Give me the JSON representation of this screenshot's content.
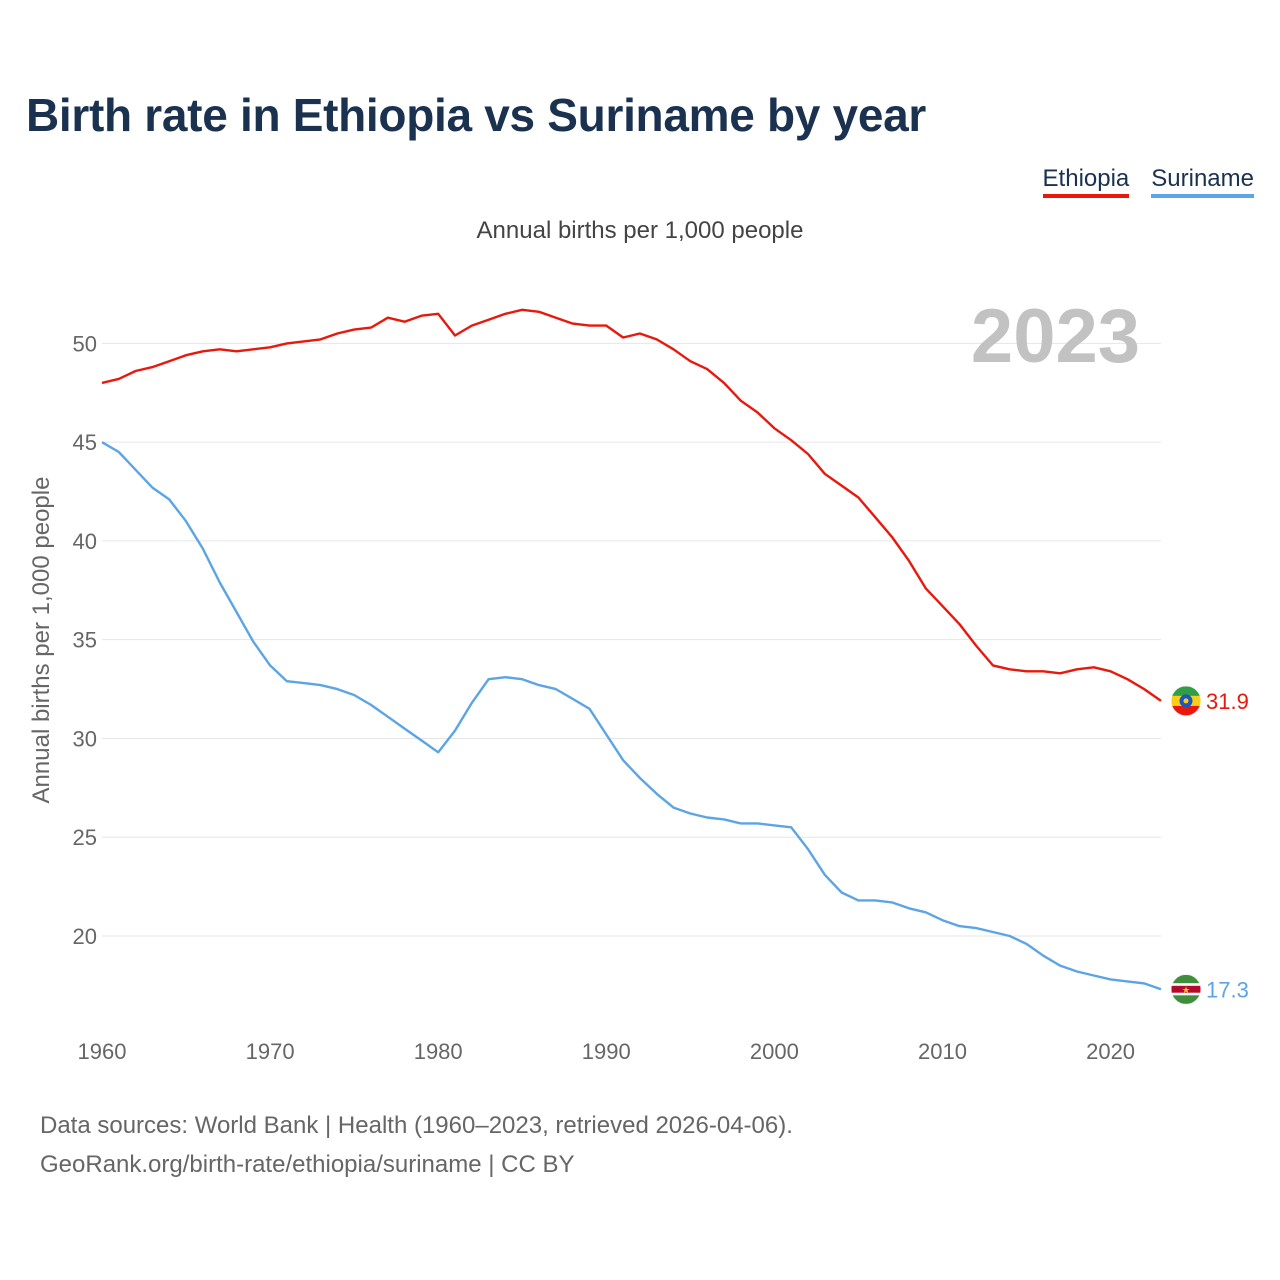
{
  "title": "Birth rate in Ethiopia vs Suriname by year",
  "year_watermark": "2023",
  "footer": {
    "line1": "Data sources: World Bank | Health (1960–2023, retrieved 2026-04-06).",
    "line2": "GeoRank.org/birth-rate/ethiopia/suriname | CC BY"
  },
  "chart_data": {
    "type": "line",
    "title": "Birth rate in Ethiopia vs Suriname by year",
    "subtitle": "Annual births per 1,000 people",
    "xlabel": "",
    "ylabel": "Annual births per 1,000 people",
    "xlim": [
      1960,
      2023
    ],
    "ylim": [
      15,
      53
    ],
    "grid": true,
    "legend_position": "top-right",
    "x_ticks": [
      1960,
      1970,
      1980,
      1990,
      2000,
      2010,
      2020
    ],
    "y_ticks": [
      20,
      25,
      30,
      35,
      40,
      45,
      50
    ],
    "x": [
      1960,
      1961,
      1962,
      1963,
      1964,
      1965,
      1966,
      1967,
      1968,
      1969,
      1970,
      1971,
      1972,
      1973,
      1974,
      1975,
      1976,
      1977,
      1978,
      1979,
      1980,
      1981,
      1982,
      1983,
      1984,
      1985,
      1986,
      1987,
      1988,
      1989,
      1990,
      1991,
      1992,
      1993,
      1994,
      1995,
      1996,
      1997,
      1998,
      1999,
      2000,
      2001,
      2002,
      2003,
      2004,
      2005,
      2006,
      2007,
      2008,
      2009,
      2010,
      2011,
      2012,
      2013,
      2014,
      2015,
      2016,
      2017,
      2018,
      2019,
      2020,
      2021,
      2022,
      2023
    ],
    "series": [
      {
        "name": "Ethiopia",
        "color": "#e8180c",
        "end_label": "31.9",
        "values": [
          48.0,
          48.2,
          48.6,
          48.8,
          49.1,
          49.4,
          49.6,
          49.7,
          49.6,
          49.7,
          49.8,
          50.0,
          50.1,
          50.2,
          50.5,
          50.7,
          50.8,
          51.3,
          51.1,
          51.4,
          51.5,
          50.4,
          50.9,
          51.2,
          51.5,
          51.7,
          51.6,
          51.3,
          51.0,
          50.9,
          50.9,
          50.3,
          50.5,
          50.2,
          49.7,
          49.1,
          48.7,
          48.0,
          47.1,
          46.5,
          45.7,
          45.1,
          44.4,
          43.4,
          42.8,
          42.2,
          41.2,
          40.2,
          39.0,
          37.6,
          36.7,
          35.8,
          34.7,
          33.7,
          33.5,
          33.4,
          33.4,
          33.3,
          33.5,
          33.6,
          33.4,
          33.0,
          32.5,
          31.9
        ]
      },
      {
        "name": "Suriname",
        "color": "#5ba4e5",
        "end_label": "17.3",
        "values": [
          45.0,
          44.5,
          43.6,
          42.7,
          42.1,
          41.0,
          39.6,
          37.9,
          36.4,
          34.9,
          33.7,
          32.9,
          32.8,
          32.7,
          32.5,
          32.2,
          31.7,
          31.1,
          30.5,
          29.9,
          29.3,
          30.4,
          31.8,
          33.0,
          33.1,
          33.0,
          32.7,
          32.5,
          32.0,
          31.5,
          30.2,
          28.9,
          28.0,
          27.2,
          26.5,
          26.2,
          26.0,
          25.9,
          25.7,
          25.7,
          25.6,
          25.5,
          24.4,
          23.1,
          22.2,
          21.8,
          21.8,
          21.7,
          21.4,
          21.2,
          20.8,
          20.5,
          20.4,
          20.2,
          20.0,
          19.6,
          19.0,
          18.5,
          18.2,
          18.0,
          17.8,
          17.7,
          17.6,
          17.3
        ]
      }
    ]
  }
}
